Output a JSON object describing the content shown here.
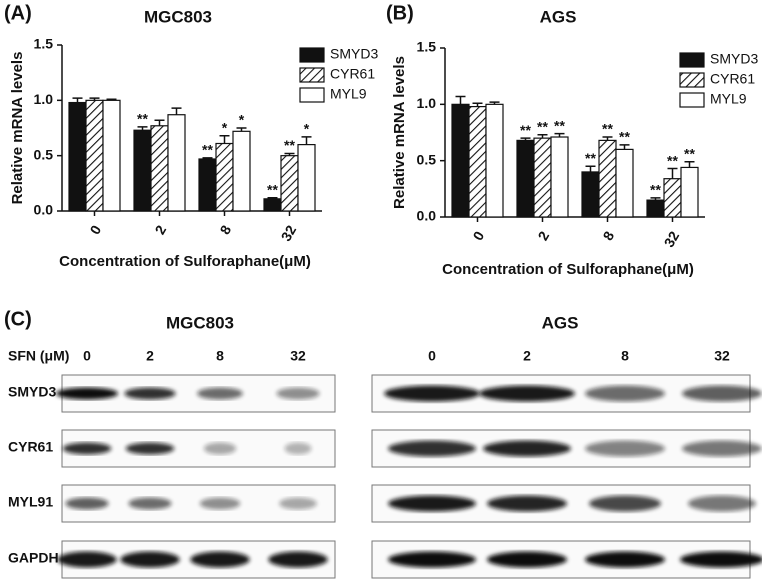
{
  "chart_data": [
    {
      "type": "bar",
      "panel": "(A)",
      "title": "MGC803",
      "y_label": "Relative mRNA levels",
      "x_label": "Concentration of Sulforaphane(μM)",
      "categories": [
        "0",
        "2",
        "8",
        "32"
      ],
      "ylim": [
        0,
        1.5
      ],
      "yticks": [
        {
          "value": 0,
          "label": "0.0"
        },
        {
          "value": 0.5,
          "label": "0.5"
        },
        {
          "value": 1,
          "label": "1.0"
        },
        {
          "value": 1.5,
          "label": "1.5"
        }
      ],
      "series": [
        {
          "name": "SMYD3",
          "color": "#111111",
          "pattern": "solid",
          "values": [
            0.98,
            0.73,
            0.47,
            0.11
          ],
          "errors": [
            0.04,
            0.03,
            0.01,
            0.01
          ],
          "annotations": [
            null,
            "**",
            "**",
            "**"
          ]
        },
        {
          "name": "CYR61",
          "color": "#111111",
          "pattern": "hatch",
          "values": [
            1.0,
            0.77,
            0.61,
            0.5
          ],
          "errors": [
            0.02,
            0.05,
            0.07,
            0.02
          ],
          "annotations": [
            null,
            null,
            "*",
            "**"
          ]
        },
        {
          "name": "MYL9",
          "color": "#ffffff",
          "pattern": "solid",
          "values": [
            1.0,
            0.87,
            0.72,
            0.6
          ],
          "errors": [
            0.01,
            0.06,
            0.03,
            0.07
          ],
          "annotations": [
            null,
            null,
            "*",
            "*"
          ]
        }
      ]
    },
    {
      "type": "bar",
      "panel": "(B)",
      "title": "AGS",
      "y_label": "Relative mRNA levels",
      "x_label": "Concentration of Sulforaphane(μM)",
      "categories": [
        "0",
        "2",
        "8",
        "32"
      ],
      "ylim": [
        0,
        1.5
      ],
      "yticks": [
        {
          "value": 0,
          "label": "0.0"
        },
        {
          "value": 0.5,
          "label": "0.5"
        },
        {
          "value": 1,
          "label": "1.0"
        },
        {
          "value": 1.5,
          "label": "1.5"
        }
      ],
      "series": [
        {
          "name": "SMYD3",
          "color": "#111111",
          "pattern": "solid",
          "values": [
            1.0,
            0.68,
            0.4,
            0.15
          ],
          "errors": [
            0.07,
            0.02,
            0.05,
            0.02
          ],
          "annotations": [
            null,
            "**",
            "**",
            "**"
          ]
        },
        {
          "name": "CYR61",
          "color": "#111111",
          "pattern": "hatch",
          "values": [
            0.98,
            0.7,
            0.68,
            0.34
          ],
          "errors": [
            0.03,
            0.03,
            0.03,
            0.09
          ],
          "annotations": [
            null,
            "**",
            "**",
            "**"
          ]
        },
        {
          "name": "MYL9",
          "color": "#ffffff",
          "pattern": "solid",
          "values": [
            1.0,
            0.71,
            0.6,
            0.44
          ],
          "errors": [
            0.02,
            0.03,
            0.04,
            0.05
          ],
          "annotations": [
            null,
            "**",
            "**",
            "**"
          ]
        }
      ]
    }
  ],
  "blots": {
    "panel": "(C)",
    "dose_header": "SFN (μM)",
    "proteins": [
      "SMYD3",
      "CYR61",
      "MYL91",
      "GAPDH"
    ],
    "panels": [
      {
        "title": "MGC803",
        "lanes": [
          "0",
          "2",
          "8",
          "32"
        ]
      },
      {
        "title": "AGS",
        "lanes": [
          "0",
          "2",
          "8",
          "32"
        ]
      }
    ]
  }
}
